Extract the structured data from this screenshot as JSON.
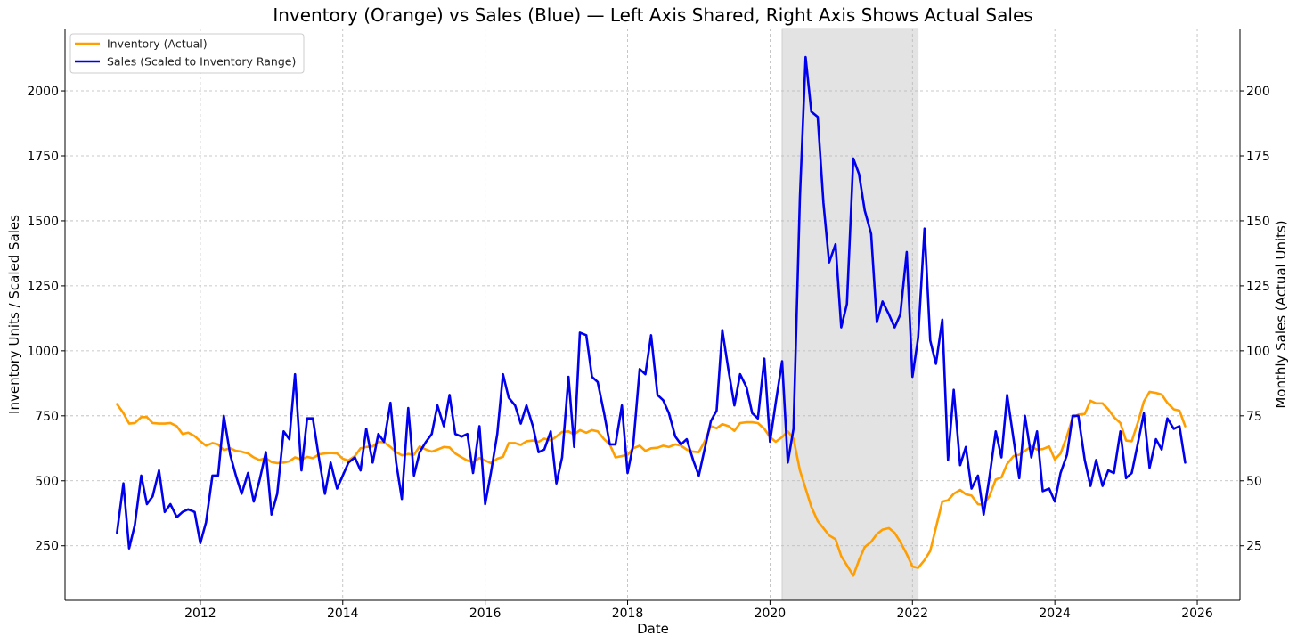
{
  "chart_data": {
    "type": "line",
    "title": "Inventory (Orange) vs Sales (Blue) — Left Axis Shared, Right Axis Shows Actual Sales",
    "xlabel": "Date",
    "ylabel": "Inventory Units / Scaled Sales",
    "y2label": "Monthly Sales (Actual Units)",
    "xlim": [
      2010.1,
      2026.6
    ],
    "ylim": [
      40,
      2240
    ],
    "y2lim": [
      4,
      224
    ],
    "x_ticks": [
      2012,
      2014,
      2016,
      2018,
      2020,
      2022,
      2024,
      2026
    ],
    "x_tick_labels": [
      "2012",
      "2014",
      "2016",
      "2018",
      "2020",
      "2022",
      "2024",
      "2026"
    ],
    "y_ticks": [
      250,
      500,
      750,
      1000,
      1250,
      1500,
      1750,
      2000
    ],
    "y_tick_labels": [
      "250",
      "500",
      "750",
      "1000",
      "1250",
      "1500",
      "1750",
      "2000"
    ],
    "y2_ticks": [
      25,
      50,
      75,
      100,
      125,
      150,
      175,
      200
    ],
    "y2_tick_labels": [
      "25",
      "50",
      "75",
      "100",
      "125",
      "150",
      "175",
      "200"
    ],
    "grid": true,
    "legend_position": "top-left",
    "shaded_region": {
      "start": 2020.17,
      "end": 2022.08
    },
    "series": [
      {
        "name": "Inventory (Actual)",
        "color": "#ff9e00",
        "x": [
          2010.83,
          2010.92,
          2011.0,
          2011.08,
          2011.17,
          2011.25,
          2011.33,
          2011.42,
          2011.5,
          2011.58,
          2011.67,
          2011.75,
          2011.83,
          2011.92,
          2012.0,
          2012.08,
          2012.17,
          2012.25,
          2012.33,
          2012.42,
          2012.5,
          2012.58,
          2012.67,
          2012.75,
          2012.83,
          2012.92,
          2013.0,
          2013.08,
          2013.17,
          2013.25,
          2013.33,
          2013.42,
          2013.5,
          2013.58,
          2013.67,
          2013.75,
          2013.83,
          2013.92,
          2014.0,
          2014.08,
          2014.17,
          2014.25,
          2014.33,
          2014.42,
          2014.5,
          2014.58,
          2014.67,
          2014.75,
          2014.83,
          2014.92,
          2015.0,
          2015.08,
          2015.17,
          2015.25,
          2015.33,
          2015.42,
          2015.5,
          2015.58,
          2015.67,
          2015.75,
          2015.83,
          2015.92,
          2016.0,
          2016.08,
          2016.17,
          2016.25,
          2016.33,
          2016.42,
          2016.5,
          2016.58,
          2016.67,
          2016.75,
          2016.83,
          2016.92,
          2017.0,
          2017.08,
          2017.17,
          2017.25,
          2017.33,
          2017.42,
          2017.5,
          2017.58,
          2017.67,
          2017.75,
          2017.83,
          2017.92,
          2018.0,
          2018.08,
          2018.17,
          2018.25,
          2018.33,
          2018.42,
          2018.5,
          2018.58,
          2018.67,
          2018.75,
          2018.83,
          2018.92,
          2019.0,
          2019.08,
          2019.17,
          2019.25,
          2019.33,
          2019.42,
          2019.5,
          2019.58,
          2019.67,
          2019.75,
          2019.83,
          2019.92,
          2020.0,
          2020.08,
          2020.17,
          2020.25,
          2020.33,
          2020.42,
          2020.5,
          2020.58,
          2020.67,
          2020.75,
          2020.83,
          2020.92,
          2021.0,
          2021.08,
          2021.17,
          2021.25,
          2021.33,
          2021.42,
          2021.5,
          2021.58,
          2021.67,
          2021.75,
          2021.83,
          2021.92,
          2022.0,
          2022.08,
          2022.17,
          2022.25,
          2022.33,
          2022.42,
          2022.5,
          2022.58,
          2022.67,
          2022.75,
          2022.83,
          2022.92,
          2023.0,
          2023.08,
          2023.17,
          2023.25,
          2023.33,
          2023.42,
          2023.5,
          2023.58,
          2023.67,
          2023.75,
          2023.83,
          2023.92,
          2024.0,
          2024.08,
          2024.17,
          2024.25,
          2024.33,
          2024.42,
          2024.5,
          2024.58,
          2024.67,
          2024.75,
          2024.83,
          2024.92,
          2025.0,
          2025.08,
          2025.17,
          2025.25,
          2025.33,
          2025.42,
          2025.5,
          2025.58,
          2025.67,
          2025.75,
          2025.83
        ],
        "values": [
          795,
          760,
          720,
          722,
          745,
          745,
          722,
          720,
          720,
          722,
          710,
          680,
          685,
          672,
          652,
          635,
          645,
          640,
          618,
          625,
          615,
          612,
          605,
          590,
          580,
          587,
          572,
          568,
          570,
          575,
          590,
          582,
          592,
          587,
          602,
          605,
          607,
          605,
          585,
          578,
          595,
          625,
          630,
          632,
          650,
          648,
          630,
          610,
          598,
          603,
          600,
          632,
          620,
          612,
          620,
          630,
          628,
          605,
          590,
          578,
          570,
          588,
          578,
          568,
          585,
          592,
          645,
          645,
          638,
          652,
          655,
          650,
          662,
          655,
          670,
          688,
          690,
          678,
          695,
          685,
          695,
          690,
          660,
          640,
          590,
          595,
          600,
          625,
          635,
          615,
          625,
          627,
          635,
          630,
          640,
          635,
          620,
          612,
          610,
          650,
          710,
          702,
          718,
          710,
          692,
          722,
          725,
          725,
          722,
          700,
          668,
          650,
          668,
          690,
          662,
          540,
          470,
          400,
          345,
          318,
          290,
          275,
          210,
          175,
          135,
          195,
          245,
          265,
          295,
          312,
          318,
          300,
          265,
          218,
          170,
          165,
          195,
          230,
          320,
          420,
          425,
          450,
          465,
          448,
          443,
          410,
          408,
          440,
          505,
          513,
          565,
          595,
          600,
          615,
          632,
          620,
          622,
          632,
          582,
          605,
          672,
          743,
          755,
          757,
          808,
          798,
          798,
          775,
          745,
          722,
          655,
          652,
          728,
          805,
          842,
          838,
          832,
          800,
          775,
          770,
          710
        ]
      },
      {
        "name": "Sales (Scaled to Inventory Range)",
        "color": "#0000ee",
        "x": [
          2010.83,
          2010.92,
          2011.0,
          2011.08,
          2011.17,
          2011.25,
          2011.33,
          2011.42,
          2011.5,
          2011.58,
          2011.67,
          2011.75,
          2011.83,
          2011.92,
          2012.0,
          2012.08,
          2012.17,
          2012.25,
          2012.33,
          2012.42,
          2012.5,
          2012.58,
          2012.67,
          2012.75,
          2012.83,
          2012.92,
          2013.0,
          2013.08,
          2013.17,
          2013.25,
          2013.33,
          2013.42,
          2013.5,
          2013.58,
          2013.67,
          2013.75,
          2013.83,
          2013.92,
          2014.0,
          2014.08,
          2014.17,
          2014.25,
          2014.33,
          2014.42,
          2014.5,
          2014.58,
          2014.67,
          2014.75,
          2014.83,
          2014.92,
          2015.0,
          2015.08,
          2015.17,
          2015.25,
          2015.33,
          2015.42,
          2015.5,
          2015.58,
          2015.67,
          2015.75,
          2015.83,
          2015.92,
          2016.0,
          2016.08,
          2016.17,
          2016.25,
          2016.33,
          2016.42,
          2016.5,
          2016.58,
          2016.67,
          2016.75,
          2016.83,
          2016.92,
          2017.0,
          2017.08,
          2017.17,
          2017.25,
          2017.33,
          2017.42,
          2017.5,
          2017.58,
          2017.67,
          2017.75,
          2017.83,
          2017.92,
          2018.0,
          2018.08,
          2018.17,
          2018.25,
          2018.33,
          2018.42,
          2018.5,
          2018.58,
          2018.67,
          2018.75,
          2018.83,
          2018.92,
          2019.0,
          2019.08,
          2019.17,
          2019.25,
          2019.33,
          2019.42,
          2019.5,
          2019.58,
          2019.67,
          2019.75,
          2019.83,
          2019.92,
          2020.0,
          2020.08,
          2020.17,
          2020.25,
          2020.33,
          2020.42,
          2020.5,
          2020.58,
          2020.67,
          2020.75,
          2020.83,
          2020.92,
          2021.0,
          2021.08,
          2021.17,
          2021.25,
          2021.33,
          2021.42,
          2021.5,
          2021.58,
          2021.67,
          2021.75,
          2021.83,
          2021.92,
          2022.0,
          2022.08,
          2022.17,
          2022.25,
          2022.33,
          2022.42,
          2022.5,
          2022.58,
          2022.67,
          2022.75,
          2022.83,
          2022.92,
          2023.0,
          2023.08,
          2023.17,
          2023.25,
          2023.33,
          2023.42,
          2023.5,
          2023.58,
          2023.67,
          2023.75,
          2023.83,
          2023.92,
          2024.0,
          2024.08,
          2024.17,
          2024.25,
          2024.33,
          2024.42,
          2024.5,
          2024.58,
          2024.67,
          2024.75,
          2024.83,
          2024.92,
          2025.0,
          2025.08,
          2025.17,
          2025.25,
          2025.33,
          2025.42,
          2025.5,
          2025.58,
          2025.67,
          2025.75,
          2025.83
        ],
        "values": [
          300,
          490,
          240,
          330,
          520,
          410,
          440,
          540,
          380,
          410,
          360,
          380,
          390,
          380,
          260,
          340,
          520,
          520,
          750,
          600,
          520,
          450,
          530,
          420,
          500,
          610,
          370,
          450,
          690,
          660,
          910,
          540,
          740,
          740,
          580,
          450,
          570,
          470,
          520,
          570,
          590,
          540,
          700,
          570,
          680,
          650,
          800,
          570,
          430,
          780,
          520,
          610,
          650,
          680,
          790,
          710,
          830,
          680,
          670,
          680,
          530,
          710,
          410,
          530,
          680,
          910,
          820,
          790,
          720,
          790,
          710,
          610,
          620,
          690,
          490,
          590,
          900,
          630,
          1070,
          1060,
          900,
          880,
          760,
          640,
          640,
          790,
          530,
          640,
          930,
          910,
          1060,
          830,
          810,
          760,
          670,
          640,
          660,
          580,
          520,
          620,
          730,
          770,
          1080,
          920,
          790,
          910,
          860,
          760,
          740,
          970,
          650,
          800,
          960,
          570,
          700,
          1590,
          2130,
          1920,
          1900,
          1570,
          1340,
          1410,
          1090,
          1180,
          1740,
          1680,
          1540,
          1450,
          1110,
          1190,
          1140,
          1090,
          1140,
          1380,
          900,
          1050,
          1470,
          1040,
          950,
          1120,
          580,
          850,
          560,
          630,
          470,
          520,
          370,
          510,
          690,
          590,
          830,
          660,
          510,
          750,
          590,
          690,
          460,
          470,
          420,
          530,
          600,
          750,
          750,
          580,
          480,
          580,
          480,
          540,
          530,
          690,
          510,
          530,
          650,
          760,
          550,
          660,
          620,
          740,
          700,
          710,
          570
        ]
      }
    ]
  }
}
